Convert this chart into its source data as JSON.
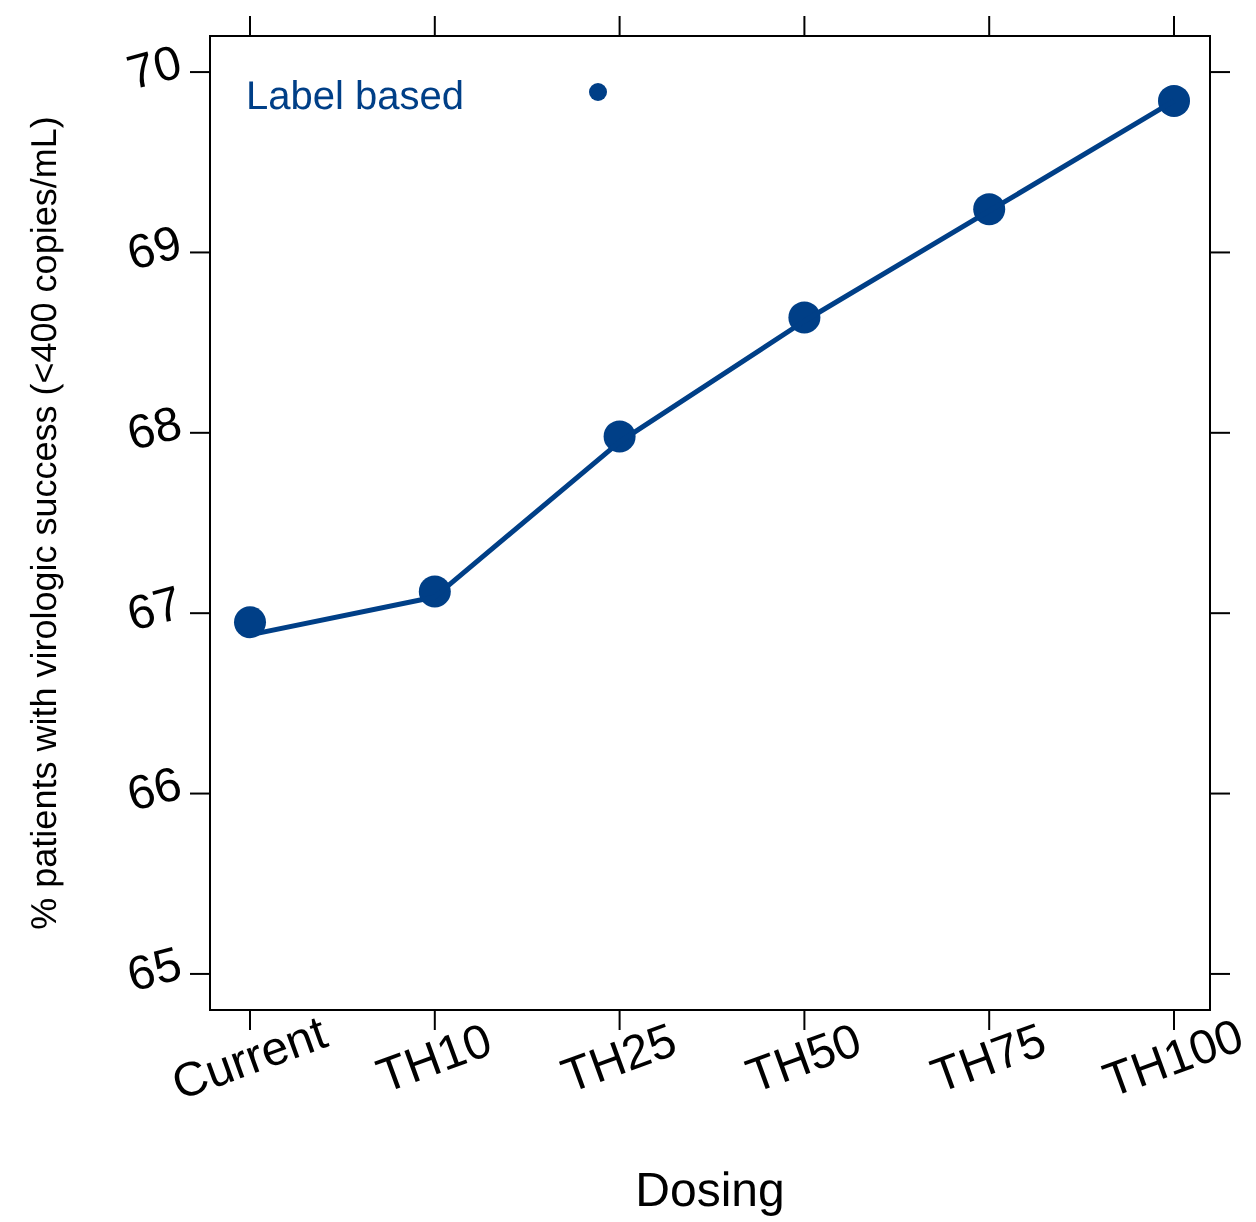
{
  "chart_data": {
    "type": "scatter",
    "xlabel": "Dosing",
    "ylabel": "% patients with virologic success (<400 copies/mL)",
    "categories": [
      "Current",
      "TH10",
      "TH25",
      "TH50",
      "TH75",
      "TH100"
    ],
    "ylim": [
      64.8,
      70.2
    ],
    "yticks": [
      65,
      66,
      67,
      68,
      69,
      70
    ],
    "legend": "top left",
    "marker": "circle",
    "series": [
      {
        "name": "Label based",
        "color": "#003f87",
        "values": [
          66.95,
          67.12,
          67.98,
          68.64,
          69.24,
          69.84
        ]
      },
      {
        "type": "line",
        "color": "#003f87",
        "line_style": "solid",
        "marker": "none",
        "values": [
          66.88,
          67.09,
          67.95,
          68.62,
          69.23,
          69.84
        ]
      }
    ]
  }
}
